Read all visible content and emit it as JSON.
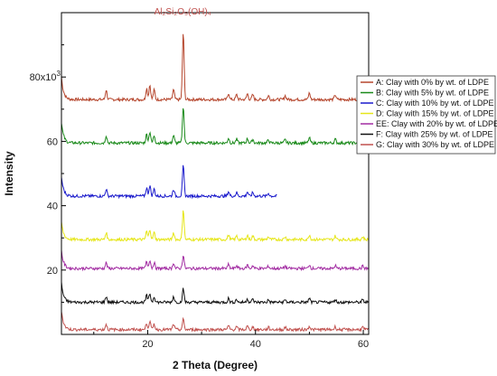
{
  "chart_data": {
    "type": "line",
    "title": "",
    "xlabel": "2 Theta (Degree)",
    "ylabel": "Intensity",
    "xlim": [
      4,
      61
    ],
    "ylim": [
      0,
      100000
    ],
    "x_ticks": [
      {
        "value": 20,
        "label": "20"
      },
      {
        "value": 40,
        "label": "40"
      },
      {
        "value": 60,
        "label": "60"
      }
    ],
    "y_ticks": [
      {
        "value": 20000,
        "label": "20"
      },
      {
        "value": 40000,
        "label": "40"
      },
      {
        "value": 60000,
        "label": "60"
      },
      {
        "value": 80000,
        "label": "80x10",
        "sup": "3"
      }
    ],
    "annotation": {
      "text": "Al₂Si₂O₅(OH)₄",
      "x": 26.5,
      "y": 94000
    },
    "legend_position": "right",
    "series": [
      {
        "name": "A: Clay with 0% by wt. of LDPE",
        "color": "#b5452c",
        "x_end": 61,
        "baseline": 73000,
        "start_spike": 7000,
        "peak_scale": 1.0
      },
      {
        "name": "B: Clay with 5% by wt. of LDPE",
        "color": "#1a8a1a",
        "x_end": 61,
        "baseline": 59500,
        "start_spike": 6500,
        "peak_scale": 0.55
      },
      {
        "name": "C: Clay with 10% by wt. of LDPE",
        "color": "#1a1acc",
        "x_end": 44,
        "baseline": 43000,
        "start_spike": 6000,
        "peak_scale": 0.45
      },
      {
        "name": "D: Clay with 15% by wt. of LDPE",
        "color": "#e6e619",
        "x_end": 61,
        "baseline": 29500,
        "start_spike": 5500,
        "peak_scale": 0.45
      },
      {
        "name": "EE: Clay with 20% by wt. of LDPE",
        "color": "#a22ca2",
        "x_end": 61,
        "baseline": 20500,
        "start_spike": 5500,
        "peak_scale": 0.2
      },
      {
        "name": "F: Clay with 25% by wt. of LDPE",
        "color": "#111111",
        "x_end": 61,
        "baseline": 10000,
        "start_spike": 6000,
        "peak_scale": 0.2
      },
      {
        "name": "G: Clay with 30% by wt. of LDPE",
        "color": "#c0504d",
        "x_end": 61,
        "baseline": 1500,
        "start_spike": 6000,
        "peak_scale": 0.15
      }
    ]
  }
}
